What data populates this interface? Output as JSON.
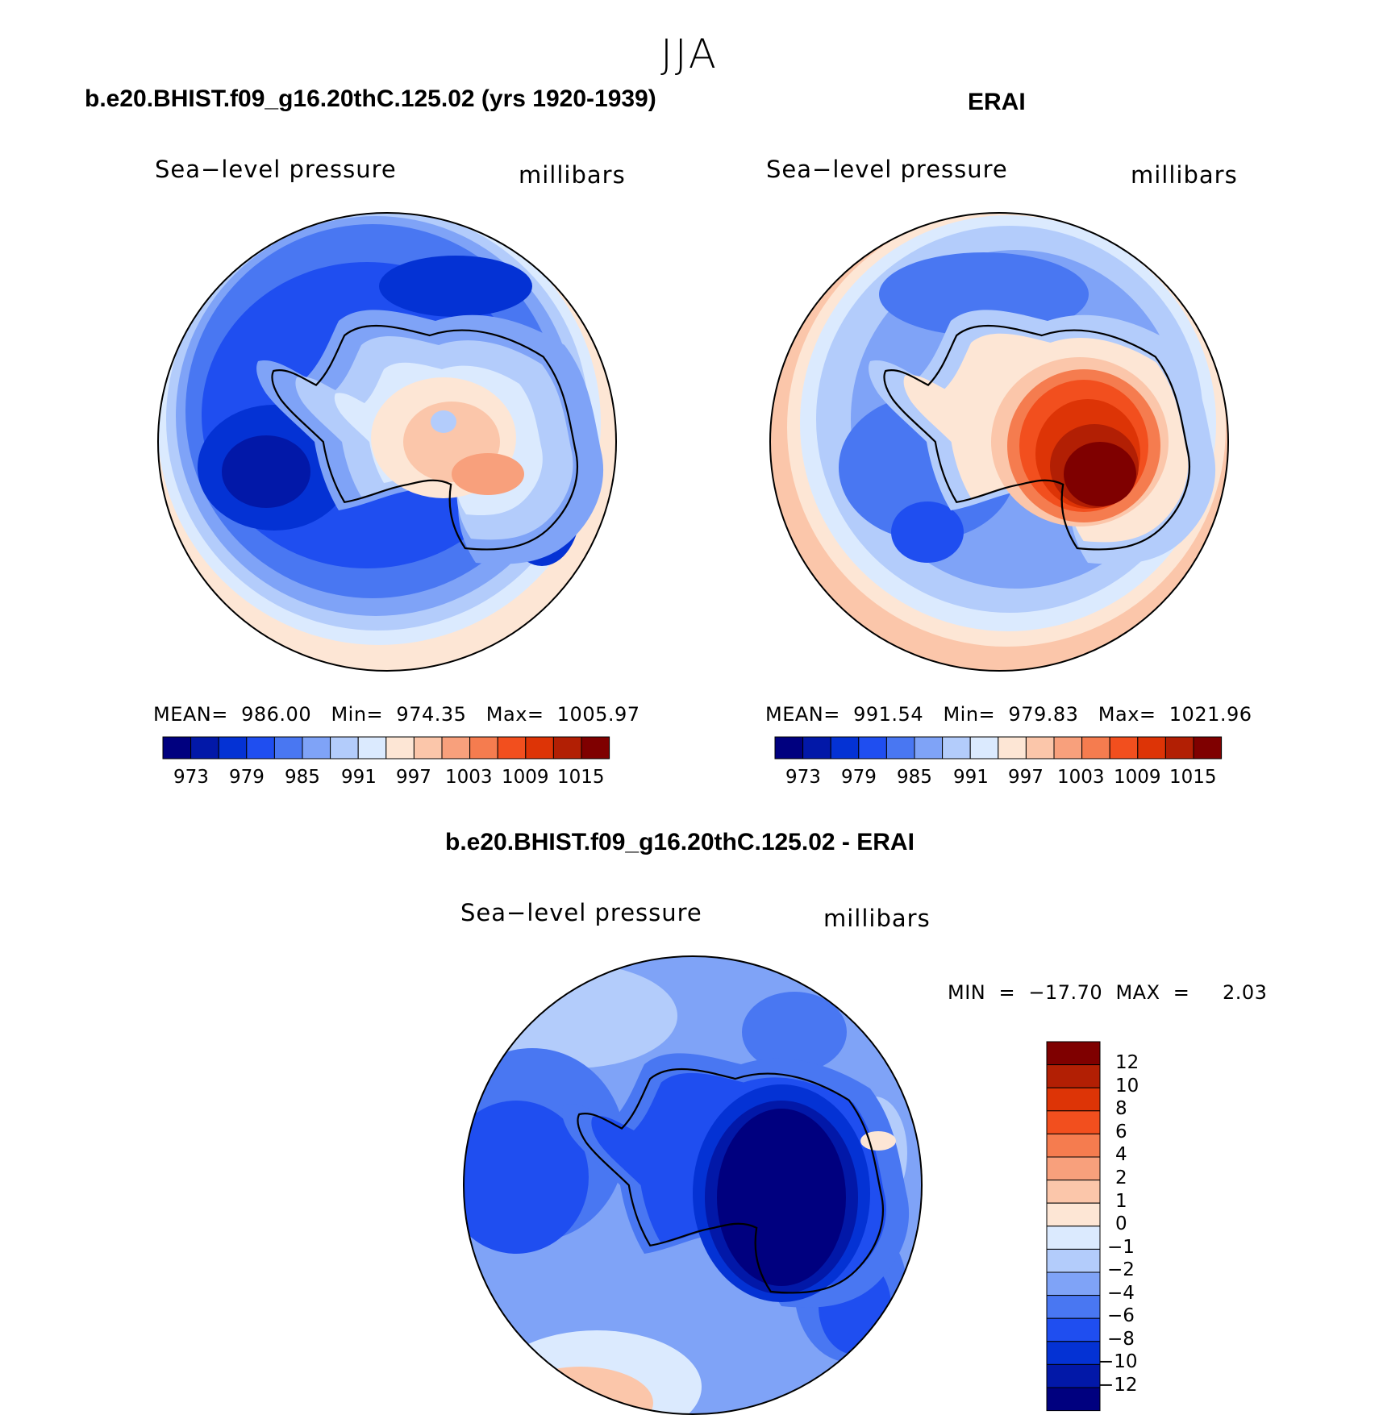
{
  "title": "JJA",
  "panels": [
    {
      "title": "b.e20.BHIST.f09_g16.20thC.125.02 (yrs 1920-1939)",
      "left_label": "Sea−level pressure",
      "right_label": "millibars",
      "stats": "MEAN=  986.00   Min=  974.35   Max=  1005.97",
      "colorbar_ticks": [
        "973",
        "979",
        "985",
        "991",
        "997",
        "1003",
        "1009",
        "1015"
      ]
    },
    {
      "title": "ERAI",
      "left_label": "Sea−level pressure",
      "right_label": "millibars",
      "stats": "MEAN=  991.54   Min=  979.83   Max=  1021.96",
      "colorbar_ticks": [
        "973",
        "979",
        "985",
        "991",
        "997",
        "1003",
        "1009",
        "1015"
      ]
    }
  ],
  "diff_panel": {
    "title": "b.e20.BHIST.f09_g16.20thC.125.02 - ERAI",
    "left_label": "Sea−level pressure",
    "right_label": "millibars",
    "stats": "MIN  =  −17.70  MAX  =     2.03",
    "colorbar_ticks": [
      "12",
      "10",
      "8",
      "6",
      "4",
      "2",
      "1",
      "0",
      "−1",
      "−2",
      "−4",
      "−6",
      "−8",
      "−10",
      "−12"
    ]
  },
  "chart_data": [
    {
      "type": "heatmap",
      "projection": "south polar stereographic",
      "title": "b.e20.BHIST.f09_g16.20thC.125.02 (yrs 1920-1939)",
      "variable": "Sea-level pressure",
      "units": "millibars",
      "mean": 986.0,
      "min": 974.35,
      "max": 1005.97,
      "levels": [
        970,
        973,
        976,
        979,
        982,
        985,
        988,
        991,
        994,
        997,
        1000,
        1003,
        1006,
        1009,
        1012,
        1015,
        1018
      ],
      "colors": [
        "#00007f",
        "#0218a8",
        "#0432d4",
        "#1f4ef0",
        "#4977f2",
        "#7fa3f7",
        "#b3ccfb",
        "#dbeafe",
        "#fde6d5",
        "#fbc6aa",
        "#f8a07c",
        "#f57c4f",
        "#f24f1e",
        "#dd3406",
        "#b21f04",
        "#7f0000"
      ]
    },
    {
      "type": "heatmap",
      "projection": "south polar stereographic",
      "title": "ERAI",
      "variable": "Sea-level pressure",
      "units": "millibars",
      "mean": 991.54,
      "min": 979.83,
      "max": 1021.96,
      "levels": [
        970,
        973,
        976,
        979,
        982,
        985,
        988,
        991,
        994,
        997,
        1000,
        1003,
        1006,
        1009,
        1012,
        1015,
        1018
      ],
      "colors": [
        "#00007f",
        "#0218a8",
        "#0432d4",
        "#1f4ef0",
        "#4977f2",
        "#7fa3f7",
        "#b3ccfb",
        "#dbeafe",
        "#fde6d5",
        "#fbc6aa",
        "#f8a07c",
        "#f57c4f",
        "#f24f1e",
        "#dd3406",
        "#b21f04",
        "#7f0000"
      ]
    },
    {
      "type": "heatmap",
      "projection": "south polar stereographic",
      "title": "b.e20.BHIST.f09_g16.20thC.125.02 - ERAI",
      "variable": "Sea-level pressure",
      "units": "millibars",
      "min": -17.7,
      "max": 2.03,
      "levels": [
        -12,
        -10,
        -8,
        -6,
        -4,
        -2,
        -1,
        0,
        1,
        2,
        4,
        6,
        8,
        10,
        12
      ],
      "colors": [
        "#00007f",
        "#0218a8",
        "#0432d4",
        "#1f4ef0",
        "#4977f2",
        "#7fa3f7",
        "#b3ccfb",
        "#dbeafe",
        "#fde6d5",
        "#fbc6aa",
        "#f8a07c",
        "#f57c4f",
        "#f24f1e",
        "#dd3406",
        "#b21f04",
        "#7f0000"
      ]
    }
  ]
}
